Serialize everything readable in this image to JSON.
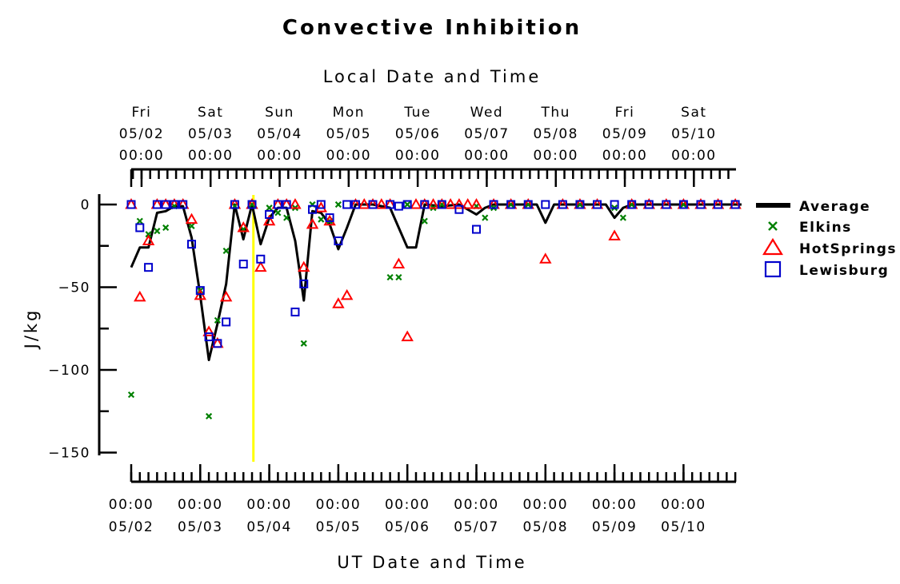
{
  "chart_data": {
    "type": "scatter",
    "title": "Convective Inhibition",
    "top_axis_title": "Local Date and Time",
    "bottom_axis_title": "UT Date and Time",
    "ylabel": "J/kg",
    "ylim": [
      -155,
      5
    ],
    "y_ticks": [
      0,
      -50,
      -100,
      -150
    ],
    "y_tick_labels": [
      "0",
      "−50",
      "−100",
      "−150"
    ],
    "x_unit": "days since 05/02 00:00 UT",
    "xlim": [
      0,
      8.84
    ],
    "bottom_ticks": [
      {
        "x": 0,
        "time": "00:00",
        "date": "05/02"
      },
      {
        "x": 1,
        "time": "00:00",
        "date": "05/03"
      },
      {
        "x": 2,
        "time": "00:00",
        "date": "05/04"
      },
      {
        "x": 3,
        "time": "00:00",
        "date": "05/05"
      },
      {
        "x": 4,
        "time": "00:00",
        "date": "05/06"
      },
      {
        "x": 5,
        "time": "00:00",
        "date": "05/07"
      },
      {
        "x": 6,
        "time": "00:00",
        "date": "05/08"
      },
      {
        "x": 7,
        "time": "00:00",
        "date": "05/09"
      },
      {
        "x": 8,
        "time": "00:00",
        "date": "05/10"
      }
    ],
    "top_ticks": [
      {
        "x": 0.15,
        "day": "Fri",
        "date": "05/02",
        "time": "00:00"
      },
      {
        "x": 1.15,
        "day": "Sat",
        "date": "05/03",
        "time": "00:00"
      },
      {
        "x": 2.15,
        "day": "Sun",
        "date": "05/04",
        "time": "00:00"
      },
      {
        "x": 3.15,
        "day": "Mon",
        "date": "05/05",
        "time": "00:00"
      },
      {
        "x": 4.15,
        "day": "Tue",
        "date": "05/06",
        "time": "00:00"
      },
      {
        "x": 5.15,
        "day": "Wed",
        "date": "05/07",
        "time": "00:00"
      },
      {
        "x": 6.15,
        "day": "Thu",
        "date": "05/08",
        "time": "00:00"
      },
      {
        "x": 7.15,
        "day": "Fri",
        "date": "05/09",
        "time": "00:00"
      },
      {
        "x": 8.15,
        "day": "Sat",
        "date": "05/10",
        "time": "00:00"
      }
    ],
    "current_time_line_x": 1.77,
    "current_time_line_color": "#ffff00",
    "series": [
      {
        "name": "Average",
        "kind": "line",
        "color": "#000000",
        "points": [
          [
            0,
            -38
          ],
          [
            0.125,
            -26
          ],
          [
            0.25,
            -26
          ],
          [
            0.375,
            -5
          ],
          [
            0.5,
            -4
          ],
          [
            0.625,
            -1
          ],
          [
            0.75,
            -1
          ],
          [
            0.875,
            -20
          ],
          [
            1,
            -55
          ],
          [
            1.125,
            -94
          ],
          [
            1.25,
            -72
          ],
          [
            1.375,
            -48
          ],
          [
            1.5,
            0
          ],
          [
            1.625,
            -21
          ],
          [
            1.75,
            0
          ],
          [
            1.875,
            -24
          ],
          [
            2,
            -8
          ],
          [
            2.125,
            -2
          ],
          [
            2.25,
            -2
          ],
          [
            2.375,
            -22
          ],
          [
            2.5,
            -58
          ],
          [
            2.625,
            -4
          ],
          [
            2.75,
            -5
          ],
          [
            2.875,
            -12
          ],
          [
            3,
            -27
          ],
          [
            3.125,
            -14
          ],
          [
            3.25,
            0
          ],
          [
            3.5,
            0
          ],
          [
            3.75,
            -2
          ],
          [
            3.875,
            -14
          ],
          [
            4,
            -26
          ],
          [
            4.125,
            -26
          ],
          [
            4.25,
            0
          ],
          [
            4.5,
            -1
          ],
          [
            4.75,
            0
          ],
          [
            5,
            -6
          ],
          [
            5.125,
            -2
          ],
          [
            5.25,
            0
          ],
          [
            5.875,
            0
          ],
          [
            6,
            -11
          ],
          [
            6.125,
            0
          ],
          [
            6.875,
            0
          ],
          [
            7,
            -8
          ],
          [
            7.125,
            -2
          ],
          [
            7.25,
            0
          ],
          [
            8.84,
            0
          ]
        ]
      },
      {
        "name": "Elkins",
        "kind": "marker",
        "marker": "x",
        "color": "#008000",
        "points": [
          [
            0,
            -115
          ],
          [
            0.125,
            -10
          ],
          [
            0.25,
            -18
          ],
          [
            0.375,
            -16
          ],
          [
            0.5,
            -14
          ],
          [
            0.625,
            -1
          ],
          [
            0.875,
            -13
          ],
          [
            1,
            -52
          ],
          [
            1.125,
            -128
          ],
          [
            1.25,
            -70
          ],
          [
            1.375,
            -28
          ],
          [
            1.5,
            -1
          ],
          [
            1.625,
            -15
          ],
          [
            1.75,
            0
          ],
          [
            2,
            -2
          ],
          [
            2.125,
            -5
          ],
          [
            2.25,
            -8
          ],
          [
            2.375,
            -2
          ],
          [
            2.5,
            -84
          ],
          [
            2.625,
            0
          ],
          [
            2.75,
            -9
          ],
          [
            2.875,
            -10
          ],
          [
            3,
            0
          ],
          [
            3.75,
            -44
          ],
          [
            3.875,
            -44
          ],
          [
            4,
            0
          ],
          [
            4.25,
            -10
          ],
          [
            4.375,
            -2
          ],
          [
            4.5,
            0
          ],
          [
            5,
            -1
          ],
          [
            5.125,
            -8
          ],
          [
            5.25,
            -2
          ],
          [
            5.5,
            0
          ],
          [
            5.75,
            0
          ],
          [
            6.5,
            0
          ],
          [
            7,
            -2
          ],
          [
            7.125,
            -8
          ],
          [
            7.25,
            0
          ],
          [
            8,
            0
          ]
        ]
      },
      {
        "name": "HotSprings",
        "kind": "marker",
        "marker": "triangle",
        "color": "#ff0000",
        "points": [
          [
            0,
            0
          ],
          [
            0.125,
            -56
          ],
          [
            0.25,
            -22
          ],
          [
            0.375,
            0
          ],
          [
            0.5,
            0
          ],
          [
            0.625,
            0
          ],
          [
            0.75,
            0
          ],
          [
            0.875,
            -9
          ],
          [
            1,
            -55
          ],
          [
            1.125,
            -77
          ],
          [
            1.25,
            -84
          ],
          [
            1.375,
            -56
          ],
          [
            1.5,
            0
          ],
          [
            1.625,
            -14
          ],
          [
            1.75,
            0
          ],
          [
            1.875,
            -38
          ],
          [
            2,
            -10
          ],
          [
            2.125,
            0
          ],
          [
            2.25,
            0
          ],
          [
            2.375,
            0
          ],
          [
            2.5,
            -38
          ],
          [
            2.625,
            -12
          ],
          [
            2.75,
            -2
          ],
          [
            2.875,
            -10
          ],
          [
            3,
            -60
          ],
          [
            3.125,
            -55
          ],
          [
            3.25,
            0
          ],
          [
            3.375,
            0
          ],
          [
            3.5,
            0
          ],
          [
            3.625,
            0
          ],
          [
            3.75,
            0
          ],
          [
            3.875,
            -36
          ],
          [
            4,
            -80
          ],
          [
            4.125,
            0
          ],
          [
            4.25,
            0
          ],
          [
            4.375,
            0
          ],
          [
            4.5,
            0
          ],
          [
            4.625,
            0
          ],
          [
            4.75,
            0
          ],
          [
            4.875,
            0
          ],
          [
            5,
            0
          ],
          [
            5.25,
            0
          ],
          [
            5.5,
            0
          ],
          [
            5.75,
            0
          ],
          [
            6,
            -33
          ],
          [
            6.25,
            0
          ],
          [
            6.5,
            0
          ],
          [
            6.75,
            0
          ],
          [
            7,
            -19
          ],
          [
            7.25,
            0
          ],
          [
            7.5,
            0
          ],
          [
            7.75,
            0
          ],
          [
            8,
            0
          ],
          [
            8.25,
            0
          ],
          [
            8.5,
            0
          ],
          [
            8.75,
            0
          ]
        ]
      },
      {
        "name": "Lewisburg",
        "kind": "marker",
        "marker": "square",
        "color": "#0000cc",
        "points": [
          [
            0,
            0
          ],
          [
            0.125,
            -14
          ],
          [
            0.25,
            -38
          ],
          [
            0.375,
            0
          ],
          [
            0.5,
            0
          ],
          [
            0.625,
            0
          ],
          [
            0.75,
            0
          ],
          [
            0.875,
            -24
          ],
          [
            1,
            -52
          ],
          [
            1.125,
            -80
          ],
          [
            1.25,
            -84
          ],
          [
            1.375,
            -71
          ],
          [
            1.5,
            0
          ],
          [
            1.625,
            -36
          ],
          [
            1.75,
            0
          ],
          [
            1.875,
            -33
          ],
          [
            2,
            -6
          ],
          [
            2.125,
            0
          ],
          [
            2.25,
            0
          ],
          [
            2.375,
            -65
          ],
          [
            2.5,
            -48
          ],
          [
            2.625,
            -3
          ],
          [
            2.75,
            0
          ],
          [
            2.875,
            -8
          ],
          [
            3,
            -22
          ],
          [
            3.125,
            0
          ],
          [
            3.25,
            0
          ],
          [
            3.5,
            0
          ],
          [
            3.75,
            0
          ],
          [
            3.875,
            -1
          ],
          [
            4,
            0
          ],
          [
            4.25,
            0
          ],
          [
            4.5,
            0
          ],
          [
            4.75,
            -3
          ],
          [
            5,
            -15
          ],
          [
            5.25,
            0
          ],
          [
            5.5,
            0
          ],
          [
            5.75,
            0
          ],
          [
            6,
            0
          ],
          [
            6.25,
            0
          ],
          [
            6.5,
            0
          ],
          [
            6.75,
            0
          ],
          [
            7,
            0
          ],
          [
            7.25,
            0
          ],
          [
            7.5,
            0
          ],
          [
            7.75,
            0
          ],
          [
            8,
            0
          ],
          [
            8.25,
            0
          ],
          [
            8.5,
            0
          ],
          [
            8.75,
            0
          ]
        ]
      }
    ]
  }
}
